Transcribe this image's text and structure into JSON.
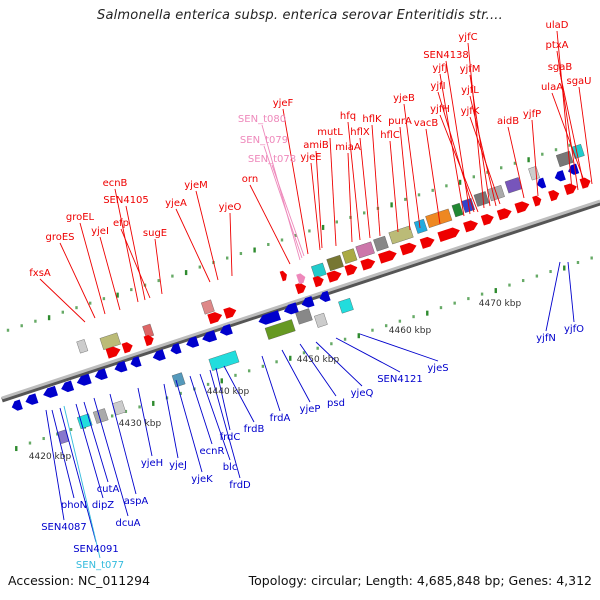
{
  "title": "Salmonella enterica subsp. enterica serovar Enteritidis str....",
  "footer": {
    "accession": "Accession: NC_011294",
    "topology": "Topology: circular; Length: 4,685,848 bp; Genes: 4,312"
  },
  "colors": {
    "forward": "#ee0000",
    "reverse": "#0000cc",
    "rna": "#ee88bb",
    "rna_reverse": "#33bbdd",
    "backbone": "#9a9a9a"
  },
  "scale_labels": [
    "4420 kbp",
    "4430 kbp",
    "4440 kbp",
    "4450 kbp",
    "4460 kbp",
    "4470 kbp"
  ],
  "forward_genes": [
    {
      "name": "fxsA"
    },
    {
      "name": "groES"
    },
    {
      "name": "groEL"
    },
    {
      "name": "yjeI"
    },
    {
      "name": "ecnB"
    },
    {
      "name": "SEN4105"
    },
    {
      "name": "efp"
    },
    {
      "name": "sugE"
    },
    {
      "name": "yjeA"
    },
    {
      "name": "yjeM"
    },
    {
      "name": "yjeO"
    },
    {
      "name": "orn"
    },
    {
      "name": "SEN_t080"
    },
    {
      "name": "SEN_t079"
    },
    {
      "name": "SEN_t078"
    },
    {
      "name": "yjeF"
    },
    {
      "name": "yjeE"
    },
    {
      "name": "amiB"
    },
    {
      "name": "mutL"
    },
    {
      "name": "miaA"
    },
    {
      "name": "hfq"
    },
    {
      "name": "hflX"
    },
    {
      "name": "hflK"
    },
    {
      "name": "hflC"
    },
    {
      "name": "purA"
    },
    {
      "name": "yjeB"
    },
    {
      "name": "vacB"
    },
    {
      "name": "SEN4138"
    },
    {
      "name": "yjfJ"
    },
    {
      "name": "yjfI"
    },
    {
      "name": "yjfH"
    },
    {
      "name": "yjfC"
    },
    {
      "name": "yjfM"
    },
    {
      "name": "yjfL"
    },
    {
      "name": "yjfK"
    },
    {
      "name": "aidB"
    },
    {
      "name": "yjfP"
    },
    {
      "name": "ulaD"
    },
    {
      "name": "ptxA"
    },
    {
      "name": "sgaB"
    },
    {
      "name": "ulaA"
    },
    {
      "name": "sgaU"
    }
  ],
  "reverse_genes": [
    {
      "name": "SEN4087"
    },
    {
      "name": "phoN"
    },
    {
      "name": "SEN4091"
    },
    {
      "name": "SEN_t077"
    },
    {
      "name": "dipZ"
    },
    {
      "name": "cutA"
    },
    {
      "name": "dcuA"
    },
    {
      "name": "aspA"
    },
    {
      "name": "yjeH"
    },
    {
      "name": "yjeJ"
    },
    {
      "name": "yjeK"
    },
    {
      "name": "ecnR"
    },
    {
      "name": "blc"
    },
    {
      "name": "frdD"
    },
    {
      "name": "frdC"
    },
    {
      "name": "frdB"
    },
    {
      "name": "frdA"
    },
    {
      "name": "yjeP"
    },
    {
      "name": "psd"
    },
    {
      "name": "yjeQ"
    },
    {
      "name": "SEN4121"
    },
    {
      "name": "yjeS"
    },
    {
      "name": "yjfN"
    },
    {
      "name": "yjfO"
    }
  ]
}
